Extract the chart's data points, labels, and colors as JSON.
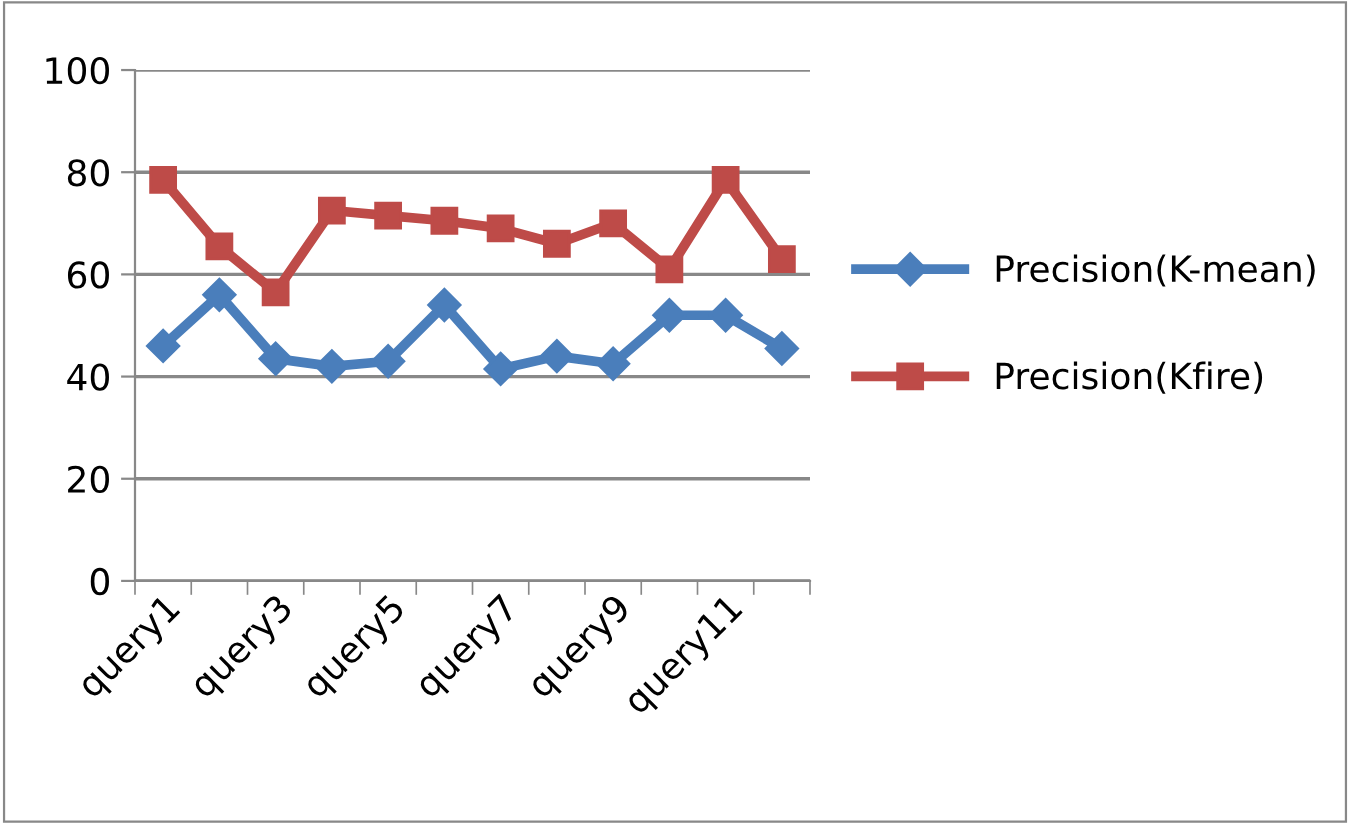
{
  "chart_data": {
    "type": "line",
    "categories": [
      "query1",
      null,
      "query3",
      null,
      "query5",
      null,
      "query7",
      null,
      "query9",
      null,
      "query11",
      null
    ],
    "series": [
      {
        "name": "Precision(K-mean)",
        "color": "#4a7ebb",
        "marker": "diamond",
        "values": [
          46,
          56,
          43.5,
          42,
          43,
          54,
          41.5,
          44,
          42.5,
          52,
          52,
          45.5
        ]
      },
      {
        "name": "Precision(Kfire)",
        "color": "#be4b48",
        "marker": "square",
        "values": [
          78.5,
          65.5,
          56.5,
          72.5,
          71.5,
          70.5,
          69,
          66,
          70,
          61,
          78.5,
          63
        ]
      }
    ],
    "ylim": [
      0,
      100
    ],
    "yticks": [
      0,
      20,
      40,
      60,
      80,
      100
    ],
    "grid": "y",
    "legend": "right",
    "line_style": "solid"
  }
}
